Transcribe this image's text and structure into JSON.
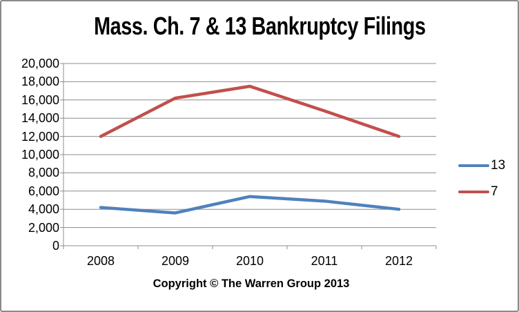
{
  "chart_data": {
    "type": "line",
    "title": "Mass. Ch. 7 & 13 Bankruptcy Filings",
    "caption": "Copyright © The Warren Group 2013",
    "categories": [
      "2008",
      "2009",
      "2010",
      "2011",
      "2012"
    ],
    "series": [
      {
        "name": "13",
        "color": "#4F81BD",
        "values": [
          4200,
          3600,
          5400,
          4900,
          4000
        ]
      },
      {
        "name": "7",
        "color": "#C0504D",
        "values": [
          12000,
          16200,
          17500,
          14800,
          12000
        ]
      }
    ],
    "ylim": [
      0,
      20000
    ],
    "ytick_step": 2000,
    "ytick_labels": [
      "0",
      "2,000",
      "4,000",
      "6,000",
      "8,000",
      "10,000",
      "12,000",
      "14,000",
      "16,000",
      "18,000",
      "20,000"
    ],
    "grid": "horizontal",
    "gridline_color": "#8C8C8C",
    "axis_text_color": "#000000",
    "legend_position": "right"
  }
}
